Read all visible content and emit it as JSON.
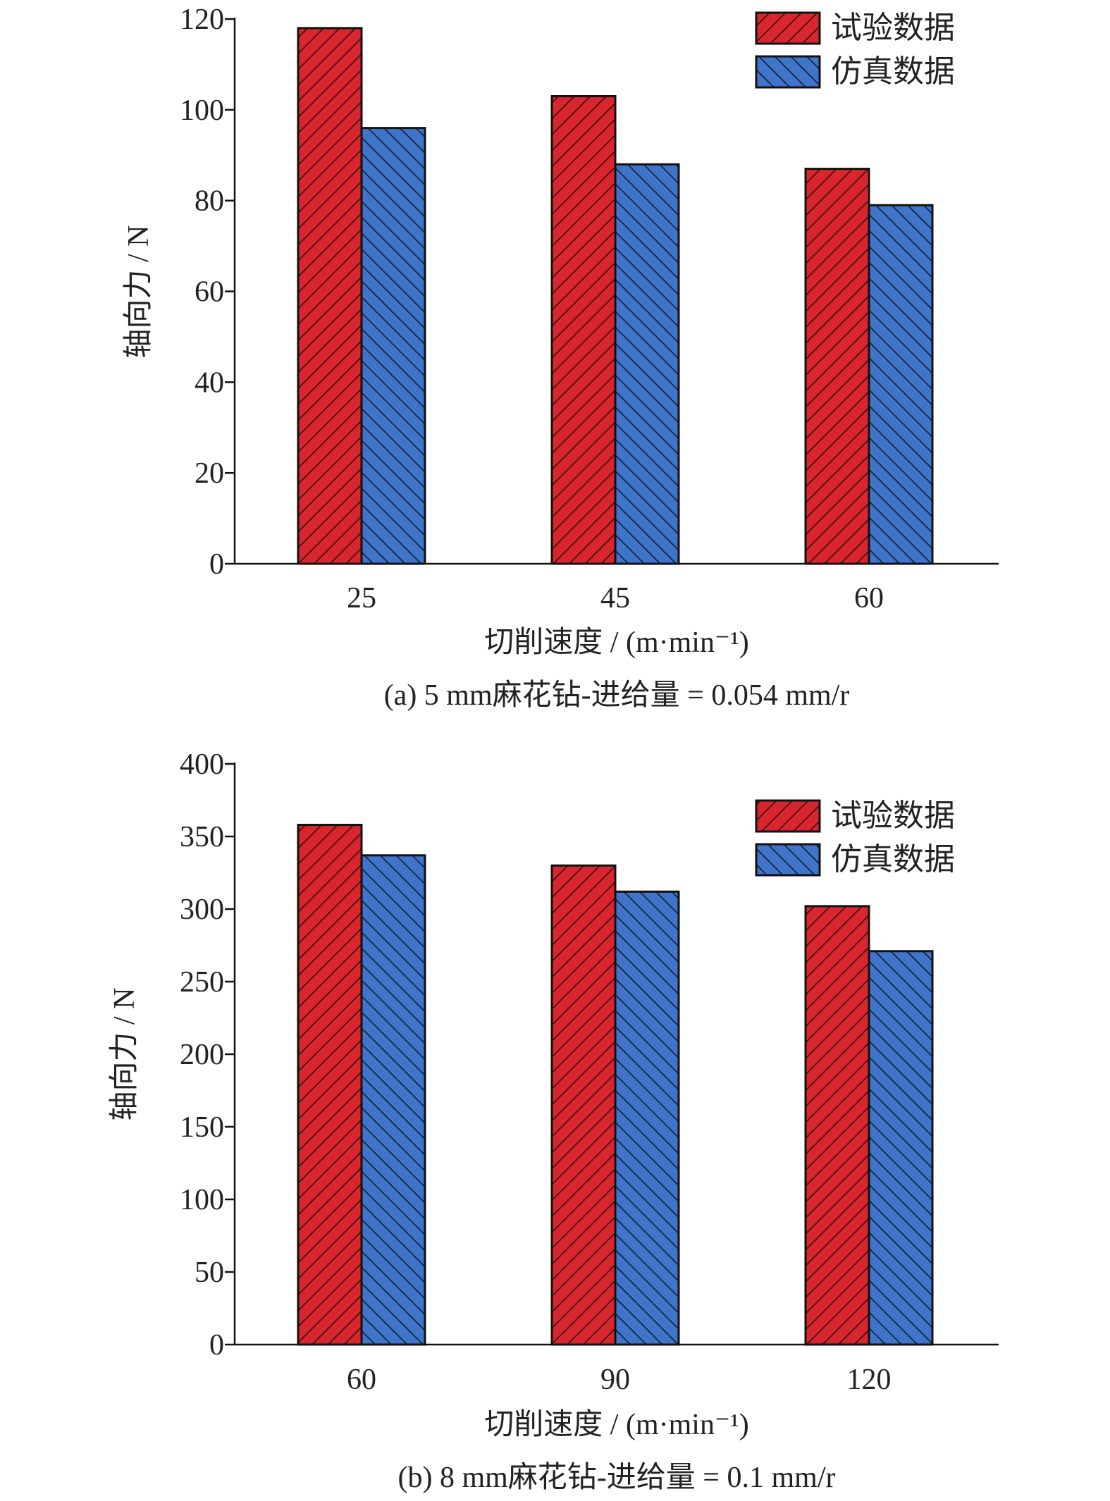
{
  "colors": {
    "test_fill": "#d8262e",
    "test_hatch": "#3a0d0d",
    "sim_fill": "#3f74c8",
    "sim_hatch": "#0e1f3a",
    "axis": "#111111"
  },
  "chart_data": [
    {
      "type": "bar",
      "caption": "(a) 5 mm麻花钻-进给量 = 0.054 mm/r",
      "xlabel": "切削速度 / (m·min⁻¹)",
      "ylabel": "轴向力 / N",
      "categories": [
        "25",
        "45",
        "60"
      ],
      "ylim": [
        0,
        120
      ],
      "yticks": [
        0,
        20,
        40,
        60,
        80,
        100,
        120
      ],
      "legend_position": "top-right",
      "grid": false,
      "series": [
        {
          "name": "试验数据",
          "values": [
            118,
            103,
            87
          ]
        },
        {
          "name": "仿真数据",
          "values": [
            96,
            88,
            79
          ]
        }
      ]
    },
    {
      "type": "bar",
      "caption": "(b) 8 mm麻花钻-进给量 = 0.1 mm/r",
      "xlabel": "切削速度 / (m·min⁻¹)",
      "ylabel": "轴向力 / N",
      "categories": [
        "60",
        "90",
        "120"
      ],
      "ylim": [
        0,
        400
      ],
      "yticks": [
        0,
        50,
        100,
        150,
        200,
        250,
        300,
        350,
        400
      ],
      "legend_position": "top-right",
      "grid": false,
      "series": [
        {
          "name": "试验数据",
          "values": [
            358,
            330,
            302
          ]
        },
        {
          "name": "仿真数据",
          "values": [
            337,
            312,
            271
          ]
        }
      ]
    }
  ]
}
